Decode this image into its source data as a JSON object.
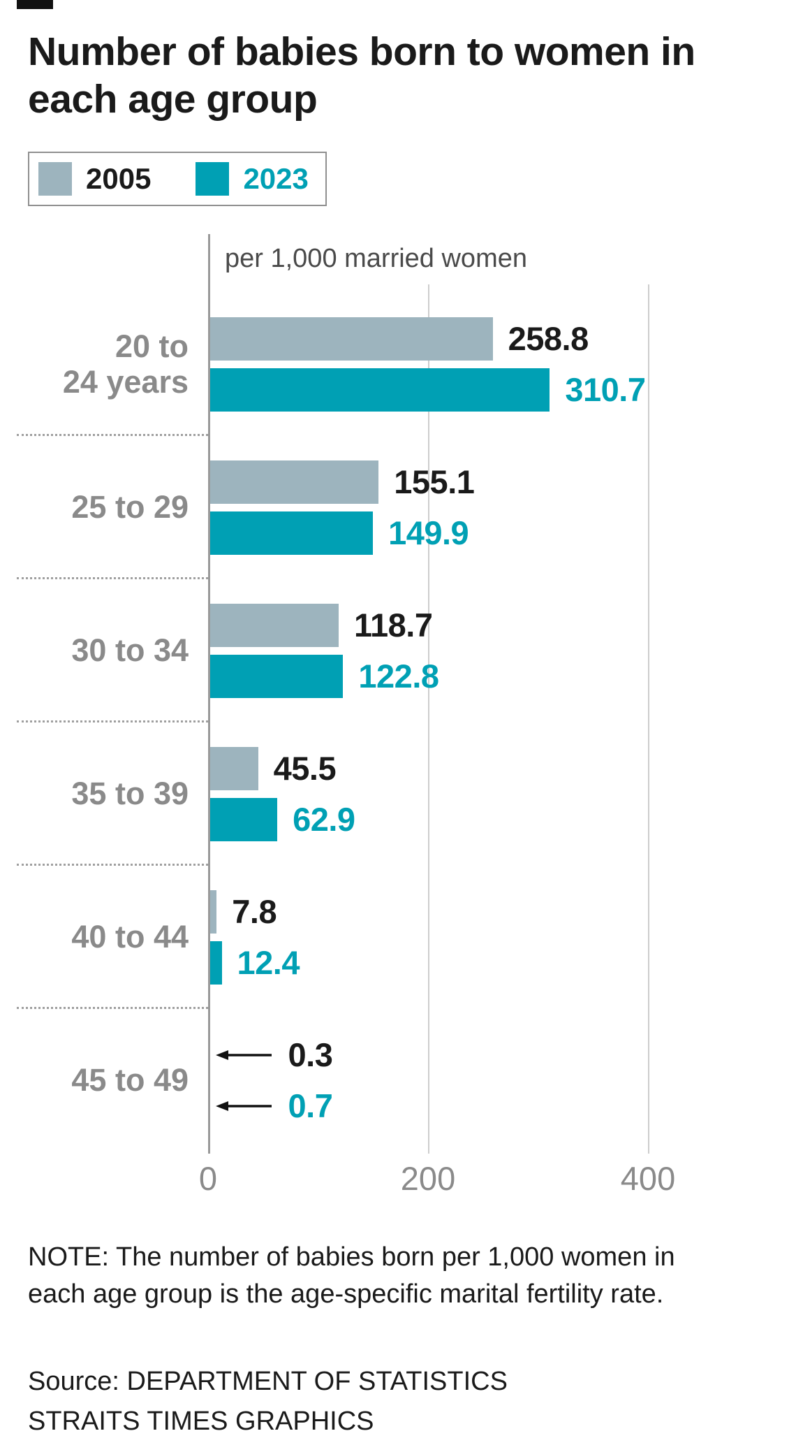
{
  "title": "Number of babies born to women in\neach age group",
  "legend": [
    {
      "label": "2005",
      "color": "#9db4be",
      "text_color": "#1a1a1a"
    },
    {
      "label": "2023",
      "color": "#00a0b4",
      "text_color": "#00a0b4"
    }
  ],
  "chart_data": {
    "type": "bar",
    "orientation": "horizontal",
    "title": "Number of babies born to women in each age group",
    "unit_label": "per 1,000 married women",
    "categories": [
      "20 to\n24 years",
      "25 to 29",
      "30 to 34",
      "35 to 39",
      "40 to 44",
      "45 to 49"
    ],
    "series": [
      {
        "name": "2005",
        "color": "#9db4be",
        "label_color": "#1a1a1a",
        "values": [
          258.8,
          155.1,
          118.7,
          45.5,
          7.8,
          0.3
        ]
      },
      {
        "name": "2023",
        "color": "#00a0b4",
        "label_color": "#00a0b4",
        "values": [
          310.7,
          149.9,
          122.8,
          62.9,
          12.4,
          0.7
        ]
      }
    ],
    "x_ticks": [
      0,
      200,
      400
    ],
    "xlim": [
      0,
      440
    ],
    "grid": true,
    "legend_position": "top"
  },
  "note": "NOTE: The number of babies born per 1,000 women in each age group is the age-specific marital fertility rate.",
  "source_lines": [
    "Source: DEPARTMENT OF STATISTICS",
    "STRAITS TIMES GRAPHICS"
  ]
}
